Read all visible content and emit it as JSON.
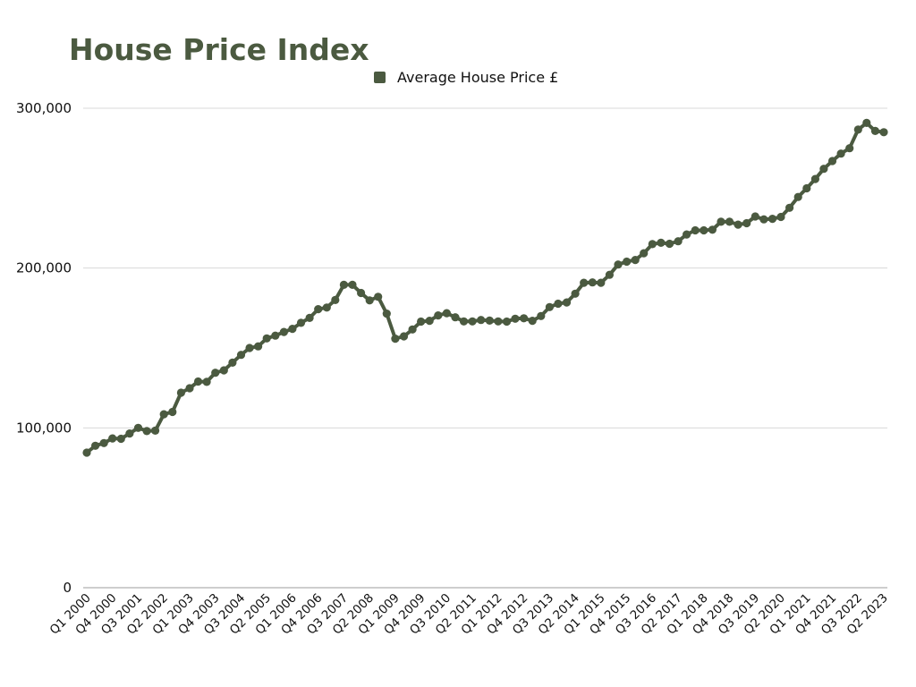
{
  "chart_data": {
    "type": "line",
    "title": "House Price Index",
    "legend": {
      "position": "top-center",
      "entries": [
        "Average House Price £"
      ]
    },
    "colors": {
      "series": "#4b5a40",
      "grid": "#d9d9d9",
      "axis": "#b0b0b0",
      "title": "#4b5a40"
    },
    "grid": true,
    "ylim": [
      0,
      300000
    ],
    "yticks": [
      "0",
      "100,000",
      "200,000",
      "300,000"
    ],
    "xtick_labels": [
      "Q1 2000",
      "Q4 2000",
      "Q3 2001",
      "Q2 2002",
      "Q1 2003",
      "Q4 2003",
      "Q3 2004",
      "Q2 2005",
      "Q1 2006",
      "Q4 2006",
      "Q3 2007",
      "Q2 2008",
      "Q1 2009",
      "Q4 2009",
      "Q3 2010",
      "Q2 2011",
      "Q1 2012",
      "Q4 2012",
      "Q3 2013",
      "Q2 2014",
      "Q1 2015",
      "Q4 2015",
      "Q3 2016",
      "Q2 2017",
      "Q1 2018",
      "Q4 2018",
      "Q3 2019",
      "Q2 2020",
      "Q1 2021",
      "Q4 2021",
      "Q3 2022",
      "Q2 2023"
    ],
    "categories": [
      "Q1 2000",
      "Q2 2000",
      "Q3 2000",
      "Q4 2000",
      "Q1 2001",
      "Q2 2001",
      "Q3 2001",
      "Q4 2001",
      "Q1 2002",
      "Q2 2002",
      "Q3 2002",
      "Q4 2002",
      "Q1 2003",
      "Q2 2003",
      "Q3 2003",
      "Q4 2003",
      "Q1 2004",
      "Q2 2004",
      "Q3 2004",
      "Q4 2004",
      "Q1 2005",
      "Q2 2005",
      "Q3 2005",
      "Q4 2005",
      "Q1 2006",
      "Q2 2006",
      "Q3 2006",
      "Q4 2006",
      "Q1 2007",
      "Q2 2007",
      "Q3 2007",
      "Q4 2007",
      "Q1 2008",
      "Q2 2008",
      "Q3 2008",
      "Q4 2008",
      "Q1 2009",
      "Q2 2009",
      "Q3 2009",
      "Q4 2009",
      "Q1 2010",
      "Q2 2010",
      "Q3 2010",
      "Q4 2010",
      "Q1 2011",
      "Q2 2011",
      "Q3 2011",
      "Q4 2011",
      "Q1 2012",
      "Q2 2012",
      "Q3 2012",
      "Q4 2012",
      "Q1 2013",
      "Q2 2013",
      "Q3 2013",
      "Q4 2013",
      "Q1 2014",
      "Q2 2014",
      "Q3 2014",
      "Q4 2014",
      "Q1 2015",
      "Q2 2015",
      "Q3 2015",
      "Q4 2015",
      "Q1 2016",
      "Q2 2016",
      "Q3 2016",
      "Q4 2016",
      "Q1 2017",
      "Q2 2017",
      "Q3 2017",
      "Q4 2017",
      "Q1 2018",
      "Q2 2018",
      "Q3 2018",
      "Q4 2018",
      "Q1 2019",
      "Q2 2019",
      "Q3 2019",
      "Q4 2019",
      "Q1 2020",
      "Q2 2020",
      "Q3 2020",
      "Q4 2020",
      "Q1 2021",
      "Q2 2021",
      "Q3 2021",
      "Q4 2021",
      "Q1 2022",
      "Q2 2022",
      "Q3 2022",
      "Q4 2022",
      "Q1 2023",
      "Q2 2023"
    ],
    "series": [
      {
        "name": "Average House Price £",
        "values": [
          84500,
          88800,
          90500,
          93400,
          93200,
          96500,
          100000,
          98000,
          98300,
          108500,
          110000,
          122000,
          124800,
          129000,
          128800,
          134500,
          136000,
          140800,
          145700,
          150000,
          151000,
          156000,
          157700,
          160000,
          162000,
          165700,
          168800,
          174300,
          175300,
          180000,
          189500,
          189500,
          184400,
          179800,
          182000,
          171500,
          155800,
          157300,
          161600,
          166500,
          167000,
          170400,
          171800,
          169200,
          166600,
          166600,
          167500,
          167100,
          166600,
          166500,
          168300,
          168600,
          167000,
          170000,
          175600,
          177700,
          178500,
          184000,
          190800,
          191000,
          190800,
          195800,
          202200,
          204000,
          205100,
          209300,
          215000,
          215800,
          215200,
          216800,
          221000,
          223600,
          223600,
          224000,
          229000,
          229000,
          227200,
          228100,
          232300,
          230500,
          230800,
          232000,
          237700,
          244500,
          249900,
          255700,
          262100,
          267000,
          271600,
          275000,
          286600,
          290800,
          285800,
          285000
        ]
      }
    ]
  }
}
